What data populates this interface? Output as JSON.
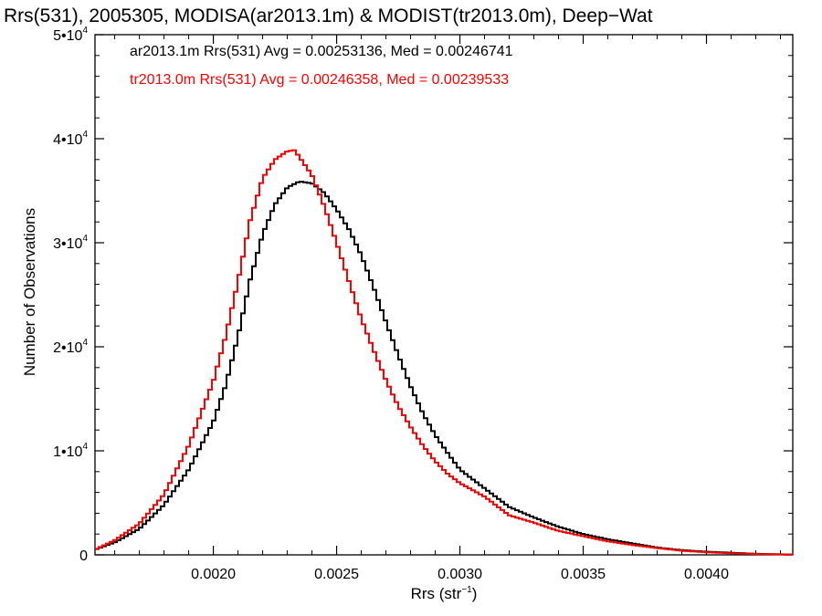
{
  "chart_data": {
    "type": "line",
    "title": "Rrs(531), 2005305, MODISA(ar2013.1m) & MODIST(tr2013.0m), Deep−Wat",
    "xlabel": "Rrs (str",
    "xlabel_sup": "−1",
    "xlabel_close": ")",
    "ylabel": "Number of Observations",
    "xlim": [
      0.00152,
      0.00435
    ],
    "ylim": [
      0,
      50000
    ],
    "x_ticks": [
      0.002,
      0.0025,
      0.003,
      0.0035,
      0.004
    ],
    "x_tick_labels": [
      "0.0020",
      "0.0025",
      "0.0030",
      "0.0035",
      "0.0040"
    ],
    "y_ticks": [
      {
        "value": 0,
        "base": "0",
        "exp": ""
      },
      {
        "value": 10000,
        "base": "1•10",
        "exp": "4"
      },
      {
        "value": 20000,
        "base": "2•10",
        "exp": "4"
      },
      {
        "value": 30000,
        "base": "3•10",
        "exp": "4"
      },
      {
        "value": 40000,
        "base": "4•10",
        "exp": "4"
      },
      {
        "value": 50000,
        "base": "5•10",
        "exp": "4"
      }
    ],
    "grid": false,
    "legend_position": "top-left",
    "series": [
      {
        "name": "ar2013.1m Rrs(531) Avg = 0.00253136, Med = 0.00246741",
        "color": "#000000",
        "points": [
          [
            0.00152,
            500
          ],
          [
            0.0016,
            1200
          ],
          [
            0.0017,
            2500
          ],
          [
            0.0018,
            4800
          ],
          [
            0.0019,
            8200
          ],
          [
            0.002,
            12800
          ],
          [
            0.00205,
            16300
          ],
          [
            0.0021,
            21000
          ],
          [
            0.00215,
            26500
          ],
          [
            0.0022,
            30800
          ],
          [
            0.00225,
            33700
          ],
          [
            0.0023,
            35300
          ],
          [
            0.00235,
            35900
          ],
          [
            0.0024,
            35700
          ],
          [
            0.00245,
            34800
          ],
          [
            0.0025,
            33200
          ],
          [
            0.00255,
            31300
          ],
          [
            0.0026,
            28800
          ],
          [
            0.00265,
            25700
          ],
          [
            0.0027,
            22400
          ],
          [
            0.00275,
            19200
          ],
          [
            0.0028,
            16200
          ],
          [
            0.00285,
            13600
          ],
          [
            0.0029,
            11500
          ],
          [
            0.00295,
            9800
          ],
          [
            0.003,
            8200
          ],
          [
            0.0031,
            6400
          ],
          [
            0.0032,
            4600
          ],
          [
            0.0033,
            3600
          ],
          [
            0.0034,
            2700
          ],
          [
            0.0035,
            2000
          ],
          [
            0.0036,
            1500
          ],
          [
            0.0037,
            1100
          ],
          [
            0.0038,
            700
          ],
          [
            0.0039,
            450
          ],
          [
            0.004,
            300
          ],
          [
            0.0041,
            200
          ],
          [
            0.0042,
            100
          ],
          [
            0.0043,
            50
          ],
          [
            0.00435,
            30
          ]
        ]
      },
      {
        "name": "tr2013.0m Rrs(531) Avg = 0.00246358, Med = 0.00239533",
        "color": "#ff0000",
        "points": [
          [
            0.00152,
            500
          ],
          [
            0.0016,
            1400
          ],
          [
            0.0017,
            3000
          ],
          [
            0.0018,
            5800
          ],
          [
            0.0019,
            10500
          ],
          [
            0.002,
            16700
          ],
          [
            0.00205,
            21000
          ],
          [
            0.0021,
            26300
          ],
          [
            0.00215,
            32200
          ],
          [
            0.0022,
            36200
          ],
          [
            0.00225,
            38000
          ],
          [
            0.0023,
            38800
          ],
          [
            0.00233,
            38900
          ],
          [
            0.00235,
            38200
          ],
          [
            0.0024,
            36500
          ],
          [
            0.00245,
            33500
          ],
          [
            0.0025,
            30000
          ],
          [
            0.00255,
            26300
          ],
          [
            0.0026,
            22700
          ],
          [
            0.00265,
            19700
          ],
          [
            0.0027,
            16800
          ],
          [
            0.00275,
            14300
          ],
          [
            0.0028,
            12300
          ],
          [
            0.00285,
            10500
          ],
          [
            0.0029,
            9000
          ],
          [
            0.00295,
            7800
          ],
          [
            0.003,
            6900
          ],
          [
            0.0031,
            5600
          ],
          [
            0.0032,
            3800
          ],
          [
            0.0033,
            3100
          ],
          [
            0.0034,
            2300
          ],
          [
            0.0035,
            1800
          ],
          [
            0.0036,
            1300
          ],
          [
            0.0037,
            950
          ],
          [
            0.0038,
            650
          ],
          [
            0.0039,
            400
          ],
          [
            0.004,
            250
          ],
          [
            0.0041,
            150
          ],
          [
            0.0042,
            80
          ],
          [
            0.0043,
            40
          ],
          [
            0.00435,
            20
          ]
        ]
      }
    ]
  }
}
